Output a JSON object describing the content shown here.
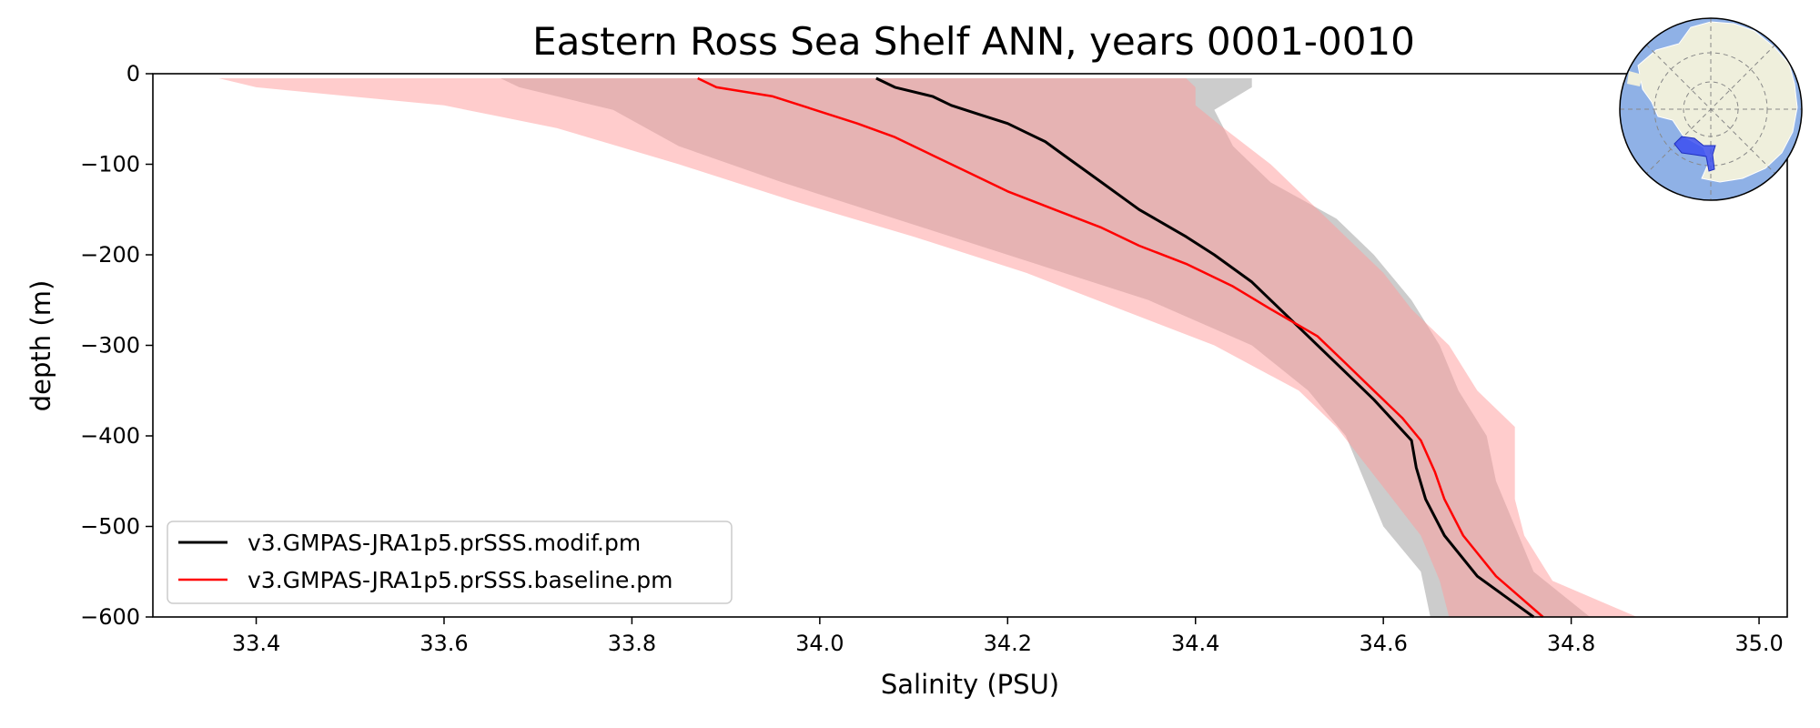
{
  "chart_data": {
    "type": "line",
    "title": "Eastern Ross Sea Shelf ANN, years 0001-0010",
    "xlabel": "Salinity (PSU)",
    "ylabel": "depth (m)",
    "xlim": [
      33.29,
      35.03
    ],
    "ylim": [
      -600,
      0
    ],
    "xticks": [
      33.4,
      33.6,
      33.8,
      34.0,
      34.2,
      34.4,
      34.6,
      34.8,
      35.0
    ],
    "xtick_labels": [
      "33.4",
      "33.6",
      "33.8",
      "34.0",
      "34.2",
      "34.4",
      "34.6",
      "34.8",
      "35.0"
    ],
    "yticks": [
      0,
      -100,
      -200,
      -300,
      -400,
      -500,
      -600
    ],
    "ytick_labels": [
      "0",
      "−100",
      "−200",
      "−300",
      "−400",
      "−500",
      "−600"
    ],
    "legend_position": "lower-left",
    "series": [
      {
        "name": "v3.GMPAS-JRA1p5.prSSS.modif.pm",
        "color": "#000000",
        "depth": [
          -5,
          -15,
          -25,
          -35,
          -45,
          -55,
          -65,
          -75,
          -90,
          -105,
          -120,
          -135,
          -150,
          -165,
          -180,
          -200,
          -230,
          -260,
          -290,
          -320,
          -360,
          -405,
          -435,
          -470,
          -510,
          -555,
          -600
        ],
        "salinity": [
          34.06,
          34.08,
          34.12,
          34.14,
          34.17,
          34.2,
          34.22,
          34.24,
          34.26,
          34.28,
          34.3,
          34.32,
          34.34,
          34.365,
          34.39,
          34.42,
          34.46,
          34.49,
          34.52,
          34.55,
          34.59,
          34.63,
          34.635,
          34.645,
          34.665,
          34.7,
          34.76
        ]
      },
      {
        "name": "v3.GMPAS-JRA1p5.prSSS.baseline.pm",
        "color": "#ff0000",
        "depth": [
          -5,
          -15,
          -25,
          -35,
          -45,
          -55,
          -70,
          -90,
          -110,
          -130,
          -150,
          -170,
          -190,
          -210,
          -235,
          -260,
          -290,
          -320,
          -350,
          -380,
          -405,
          -440,
          -470,
          -510,
          -555,
          -600
        ],
        "salinity": [
          33.87,
          33.89,
          33.95,
          33.98,
          34.01,
          34.04,
          34.08,
          34.12,
          34.16,
          34.2,
          34.25,
          34.3,
          34.34,
          34.39,
          34.44,
          34.48,
          34.53,
          34.56,
          34.59,
          34.62,
          34.64,
          34.655,
          34.665,
          34.685,
          34.72,
          34.77
        ]
      }
    ],
    "bands": [
      {
        "name": "modif-range",
        "color": "#cccccc",
        "depth": [
          -5,
          -15,
          -40,
          -80,
          -120,
          -160,
          -200,
          -250,
          -300,
          -350,
          -400,
          -450,
          -500,
          -550,
          -600
        ],
        "salinity_min": [
          33.66,
          33.68,
          33.78,
          33.85,
          33.96,
          34.08,
          34.2,
          34.35,
          34.46,
          34.52,
          34.56,
          34.58,
          34.6,
          34.64,
          34.65
        ],
        "salinity_max": [
          34.46,
          34.46,
          34.42,
          34.44,
          34.48,
          34.55,
          34.59,
          34.63,
          34.66,
          34.68,
          34.71,
          34.72,
          34.74,
          34.76,
          34.82
        ]
      },
      {
        "name": "baseline-range",
        "color": "#ff9999",
        "depth": [
          -5,
          -15,
          -35,
          -60,
          -100,
          -140,
          -180,
          -220,
          -260,
          -300,
          -350,
          -390,
          -430,
          -470,
          -510,
          -560,
          -600
        ],
        "salinity_min": [
          33.36,
          33.4,
          33.6,
          33.72,
          33.85,
          33.97,
          34.1,
          34.22,
          34.32,
          34.42,
          34.51,
          34.55,
          34.58,
          34.61,
          34.64,
          34.66,
          34.67
        ],
        "salinity_max": [
          34.39,
          34.4,
          34.4,
          34.43,
          34.48,
          34.52,
          34.56,
          34.6,
          34.63,
          34.67,
          34.7,
          34.74,
          34.74,
          34.74,
          34.75,
          34.78,
          34.87
        ]
      }
    ]
  },
  "inset_map": {
    "label": "Antarctic locator map",
    "ocean_color": "#8fb1e6",
    "land_color": "#efefdc",
    "region_color": "#3b4df0"
  }
}
